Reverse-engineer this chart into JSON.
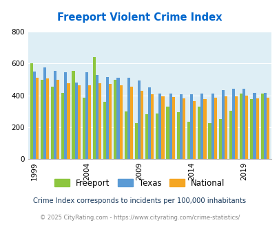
{
  "title": "Freeport Violent Crime Index",
  "subtitle": "Crime Index corresponds to incidents per 100,000 inhabitants",
  "copyright": "© 2025 CityRating.com - https://www.cityrating.com/crime-statistics/",
  "years": [
    1999,
    2000,
    2001,
    2002,
    2003,
    2004,
    2005,
    2006,
    2007,
    2008,
    2009,
    2010,
    2011,
    2012,
    2013,
    2014,
    2015,
    2016,
    2017,
    2018,
    2019,
    2020,
    2021
  ],
  "freeport": [
    600,
    500,
    455,
    415,
    555,
    385,
    640,
    360,
    500,
    300,
    225,
    280,
    285,
    330,
    295,
    235,
    330,
    225,
    250,
    305,
    410,
    375,
    410
  ],
  "texas": [
    550,
    575,
    555,
    545,
    480,
    545,
    530,
    515,
    510,
    510,
    495,
    450,
    410,
    410,
    405,
    405,
    410,
    410,
    435,
    440,
    440,
    415,
    415
  ],
  "national": [
    510,
    505,
    500,
    475,
    465,
    465,
    475,
    470,
    465,
    455,
    430,
    405,
    395,
    390,
    380,
    365,
    375,
    385,
    395,
    395,
    400,
    380,
    385
  ],
  "freeport_color": "#8dc63f",
  "texas_color": "#5b9bd5",
  "national_color": "#f5a623",
  "bg_color": "#deeef5",
  "title_color": "#0066cc",
  "ylim": [
    0,
    800
  ],
  "yticks": [
    0,
    200,
    400,
    600,
    800
  ],
  "label_freeport": "Freeport",
  "label_texas": "Texas",
  "label_national": "National",
  "tick_years": [
    1999,
    2004,
    2009,
    2014,
    2019
  ]
}
